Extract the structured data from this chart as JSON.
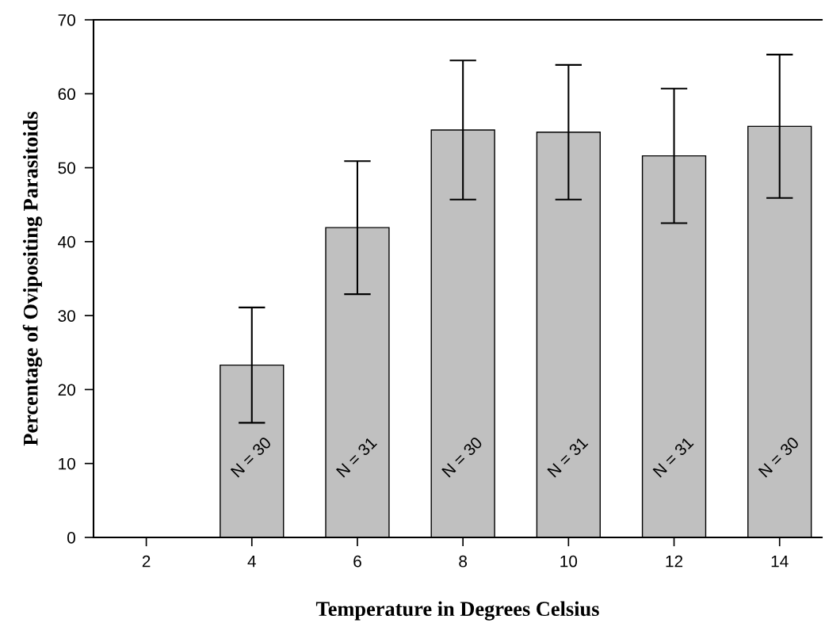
{
  "chart_data": {
    "type": "bar",
    "xlabel": "Temperature in Degrees Celsius",
    "ylabel": "Percentage of Ovipositing Parasitoids",
    "categories": [
      "2",
      "4",
      "6",
      "8",
      "10",
      "12",
      "14"
    ],
    "values": [
      0,
      23.3,
      41.9,
      55.1,
      54.8,
      51.6,
      55.6
    ],
    "errors": [
      null,
      7.8,
      9.0,
      9.4,
      9.1,
      9.1,
      9.7
    ],
    "color": "#c0c0c0",
    "ylim": [
      0,
      70
    ],
    "yticks": [
      0,
      10,
      20,
      30,
      40,
      50,
      60,
      70
    ],
    "grid": false,
    "annotations": [
      "N = 30",
      "N = 31",
      "N = 30",
      "N = 31",
      "N = 31",
      "N = 30"
    ]
  }
}
